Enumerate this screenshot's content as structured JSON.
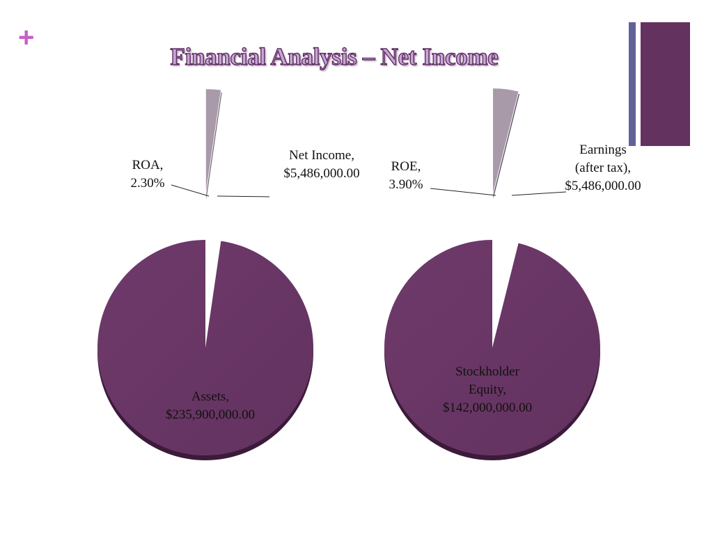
{
  "slide": {
    "title": "Financial Analysis – Net Income",
    "plus_mark": "+"
  },
  "colors": {
    "accent": "#c660c6",
    "main_slice": "#63325f",
    "main_slice_dark": "#3b1a3a",
    "small_slice": "#a99aaa",
    "small_slice_dark": "#5e5360",
    "deco_thin": "#62629a",
    "deco_wide": "#63325f",
    "leader": "#222222"
  },
  "chart_data": [
    {
      "type": "pie",
      "title": "",
      "slices": [
        {
          "category": "ROA",
          "value": 2.3,
          "unit": "%",
          "label_lines": [
            "ROA,",
            "2.30%"
          ]
        },
        {
          "category": "Net Income",
          "value": 5486000.0,
          "label_lines": [
            "Net Income,",
            "$5,486,000.00"
          ]
        },
        {
          "category": "Assets",
          "value": 235900000.0,
          "label_lines": [
            "Assets,",
            "$235,900,000.00"
          ]
        }
      ]
    },
    {
      "type": "pie",
      "title": "",
      "slices": [
        {
          "category": "ROE",
          "value": 3.9,
          "unit": "%",
          "label_lines": [
            "ROE,",
            "3.90%"
          ]
        },
        {
          "category": "Earnings (after tax)",
          "value": 5486000.0,
          "label_lines": [
            "Earnings",
            "(after tax),",
            "$5,486,000.00"
          ]
        },
        {
          "category": "Stockholder Equity",
          "value": 142000000.0,
          "label_lines": [
            "Stockholder",
            "Equity,",
            "$142,000,000.00"
          ]
        }
      ]
    }
  ]
}
